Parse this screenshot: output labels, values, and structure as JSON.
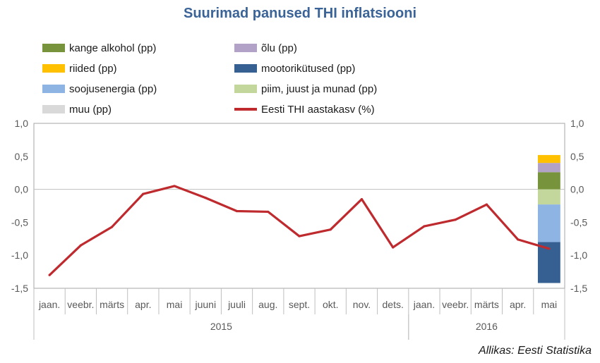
{
  "title": "Suurimad panused THI inflatsiooni",
  "source": "Allikas: Eesti Statistika",
  "chart_data": {
    "type": "bar+line",
    "title": "Suurimad panused THI inflatsiooni",
    "categories": [
      "jaan.",
      "veebr.",
      "märts",
      "apr.",
      "mai",
      "juuni",
      "juuli",
      "aug.",
      "sept.",
      "okt.",
      "nov.",
      "dets.",
      "jaan.",
      "veebr.",
      "märts",
      "apr.",
      "mai"
    ],
    "years": [
      {
        "label": "2015",
        "start": 0,
        "end": 11
      },
      {
        "label": "2016",
        "start": 12,
        "end": 16
      }
    ],
    "ylim": [
      -1.5,
      1.0
    ],
    "yticks": [
      "1,0",
      "0,5",
      "0,0",
      "-0,5",
      "-1,0",
      "-1,5"
    ],
    "ytick_values": [
      1.0,
      0.5,
      0.0,
      -0.5,
      -1.0,
      -1.5
    ],
    "legend_placement": "top",
    "line": {
      "name": "Eesti THI aastakasv (%)",
      "color": "#be2a2e",
      "values": [
        -1.3,
        -0.85,
        -0.57,
        -0.07,
        0.05,
        -0.13,
        -0.33,
        -0.34,
        -0.71,
        -0.61,
        -0.15,
        -0.88,
        -0.56,
        -0.46,
        -0.23,
        -0.76,
        -0.9
      ]
    },
    "stacked_bar": {
      "category_index": 16,
      "series": [
        {
          "name": "kange alkohol (pp)",
          "color": "#77933c",
          "values": [
            0.26
          ]
        },
        {
          "name": "õlu (pp)",
          "color": "#b3a2c7",
          "values": [
            0.14
          ]
        },
        {
          "name": "riided (pp)",
          "color": "#ffc000",
          "values": [
            0.12
          ]
        },
        {
          "name": "piim, juust ja munad (pp)",
          "color": "#c3d69b",
          "values": [
            -0.23
          ]
        },
        {
          "name": "soojusenergia (pp)",
          "color": "#8eb4e3",
          "values": [
            -0.57
          ]
        },
        {
          "name": "mootorikütused (pp)",
          "color": "#376092",
          "values": [
            -0.62
          ]
        },
        {
          "name": "muu (pp)",
          "color": "#d9d9d9",
          "values": [
            0
          ]
        }
      ]
    },
    "legend": [
      {
        "name": "kange alkohol (pp)",
        "color": "#77933c",
        "kind": "box"
      },
      {
        "name": "õlu (pp)",
        "color": "#b3a2c7",
        "kind": "box"
      },
      {
        "name": "riided (pp)",
        "color": "#ffc000",
        "kind": "box"
      },
      {
        "name": "mootorikütused (pp)",
        "color": "#376092",
        "kind": "box"
      },
      {
        "name": "soojusenergia (pp)",
        "color": "#8eb4e3",
        "kind": "box"
      },
      {
        "name": "piim, juust ja munad (pp)",
        "color": "#c3d69b",
        "kind": "box"
      },
      {
        "name": "muu (pp)",
        "color": "#d9d9d9",
        "kind": "box"
      },
      {
        "name": "Eesti THI aastakasv (%)",
        "color": "#be2a2e",
        "kind": "line"
      }
    ]
  }
}
